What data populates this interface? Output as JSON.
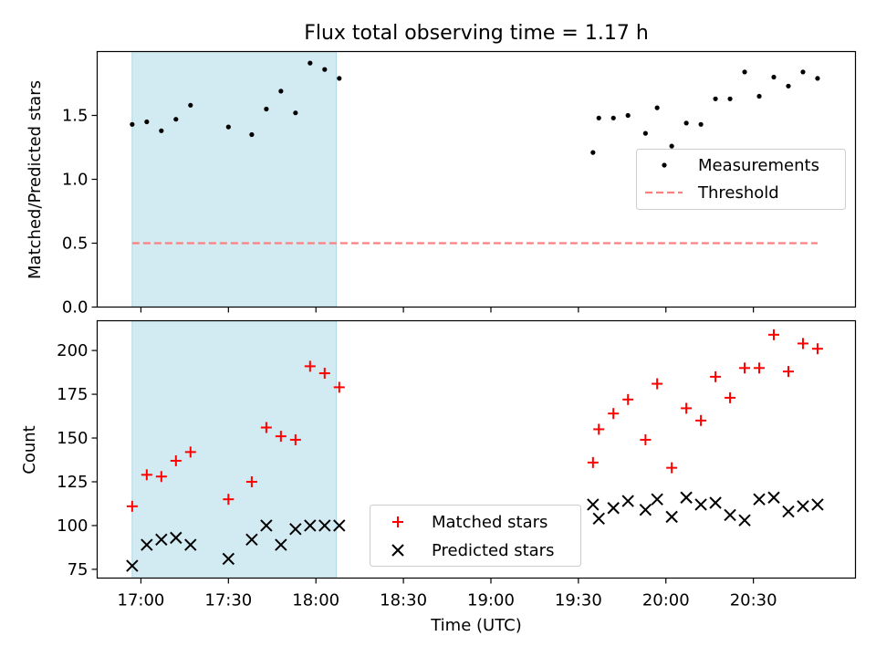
{
  "title": "Flux total observing time = 1.17 h",
  "xlabel": "Time (UTC)",
  "x_ticks": [
    "17:00",
    "17:30",
    "18:00",
    "18:30",
    "19:00",
    "19:30",
    "20:00",
    "20:30"
  ],
  "colors": {
    "shade": "#add8e6",
    "threshold": "#ff7f7f",
    "matched": "#ff0000",
    "predicted": "#000000",
    "measurement": "#000000"
  },
  "chart_data": [
    {
      "type": "scatter",
      "name": "ratio-panel",
      "title": "Flux total observing time = 1.17 h",
      "xlabel": "",
      "ylabel": "Matched/Predicted stars",
      "xlim_minutes": [
        1005,
        1265
      ],
      "ylim": [
        0,
        2.0
      ],
      "y_ticks": [
        0.0,
        0.5,
        1.0,
        1.5
      ],
      "y_tick_labels": [
        "0.0",
        "0.5",
        "1.0",
        "1.5"
      ],
      "shaded_span_minutes": [
        1017,
        1087
      ],
      "legend_position": "right",
      "series": [
        {
          "name": "Measurements",
          "marker": "dot",
          "x_minutes": [
            1017,
            1022,
            1027,
            1032,
            1037,
            1050,
            1058,
            1063,
            1068,
            1073,
            1078,
            1083,
            1088,
            1175,
            1177,
            1182,
            1187,
            1193,
            1197,
            1202,
            1207,
            1212,
            1217,
            1222,
            1227,
            1232,
            1237,
            1242,
            1247,
            1252
          ],
          "y": [
            1.43,
            1.45,
            1.38,
            1.47,
            1.58,
            1.41,
            1.35,
            1.55,
            1.69,
            1.52,
            1.91,
            1.86,
            1.79,
            1.21,
            1.48,
            1.48,
            1.5,
            1.36,
            1.56,
            1.26,
            1.44,
            1.43,
            1.63,
            1.63,
            1.84,
            1.65,
            1.8,
            1.73,
            1.84,
            1.79
          ]
        },
        {
          "name": "Threshold",
          "marker": "dashed-line",
          "x_minutes": [
            1017,
            1252
          ],
          "y": [
            0.5,
            0.5
          ]
        }
      ]
    },
    {
      "type": "scatter",
      "name": "count-panel",
      "xlabel": "Time (UTC)",
      "ylabel": "Count",
      "xlim_minutes": [
        1005,
        1265
      ],
      "ylim": [
        70,
        217
      ],
      "y_ticks": [
        75,
        100,
        125,
        150,
        175,
        200
      ],
      "y_tick_labels": [
        "75",
        "100",
        "125",
        "150",
        "175",
        "200"
      ],
      "shaded_span_minutes": [
        1017,
        1087
      ],
      "legend_position": "bottom-center",
      "series": [
        {
          "name": "Matched stars",
          "marker": "plus",
          "x_minutes": [
            1017,
            1022,
            1027,
            1032,
            1037,
            1050,
            1058,
            1063,
            1068,
            1073,
            1078,
            1083,
            1088,
            1175,
            1177,
            1182,
            1187,
            1193,
            1197,
            1202,
            1207,
            1212,
            1217,
            1222,
            1227,
            1232,
            1237,
            1242,
            1247,
            1252
          ],
          "y": [
            111,
            129,
            128,
            137,
            142,
            115,
            125,
            156,
            151,
            149,
            191,
            187,
            179,
            136,
            155,
            164,
            172,
            149,
            181,
            133,
            167,
            160,
            185,
            173,
            190,
            190,
            209,
            188,
            204,
            201
          ]
        },
        {
          "name": "Predicted stars",
          "marker": "x",
          "x_minutes": [
            1017,
            1022,
            1027,
            1032,
            1037,
            1050,
            1058,
            1063,
            1068,
            1073,
            1078,
            1083,
            1088,
            1175,
            1177,
            1182,
            1187,
            1193,
            1197,
            1202,
            1207,
            1212,
            1217,
            1222,
            1227,
            1232,
            1237,
            1242,
            1247,
            1252
          ],
          "y": [
            77,
            89,
            92,
            93,
            89,
            81,
            92,
            100,
            89,
            98,
            100,
            100,
            100,
            112,
            104,
            110,
            114,
            109,
            115,
            105,
            116,
            112,
            113,
            106,
            103,
            115,
            116,
            108,
            111,
            112
          ]
        }
      ]
    }
  ]
}
